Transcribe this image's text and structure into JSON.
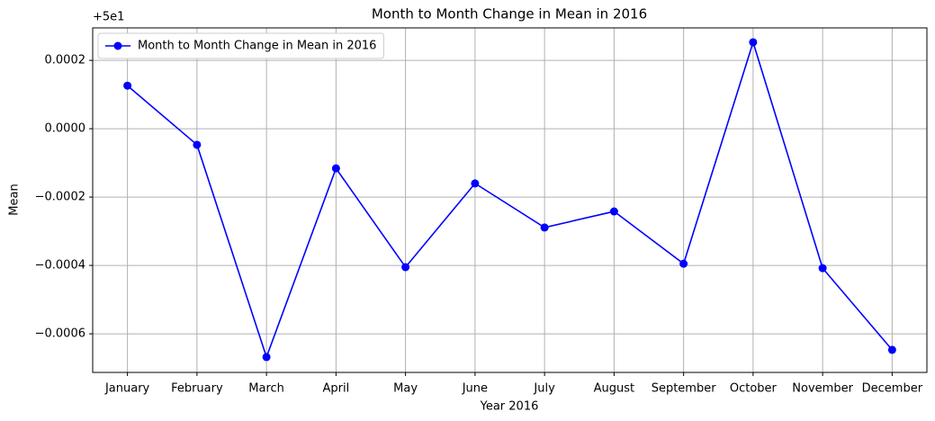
{
  "chart_data": {
    "type": "line",
    "title": "Month to Month Change in Mean in 2016",
    "xlabel": "Year 2016",
    "ylabel": "Mean",
    "offset_text": "+5e1",
    "categories": [
      "January",
      "February",
      "March",
      "April",
      "May",
      "June",
      "July",
      "August",
      "September",
      "October",
      "November",
      "December"
    ],
    "series": [
      {
        "name": "Month to Month Change in Mean in 2016",
        "color": "#0000ff",
        "values": [
          0.000126,
          -4.7e-05,
          -0.000668,
          -0.000116,
          -0.000405,
          -0.00016,
          -0.000289,
          -0.000242,
          -0.000395,
          0.000253,
          -0.000408,
          -0.000647
        ]
      }
    ],
    "ylim": [
      -0.000713,
      0.000295
    ],
    "yticks": [
      {
        "value": -0.0006,
        "label": "−0.0006"
      },
      {
        "value": -0.0004,
        "label": "−0.0004"
      },
      {
        "value": -0.0002,
        "label": "−0.0002"
      },
      {
        "value": 0,
        "label": "0.0000"
      },
      0.0002
    ],
    "grid": true,
    "legend": "upper left"
  }
}
